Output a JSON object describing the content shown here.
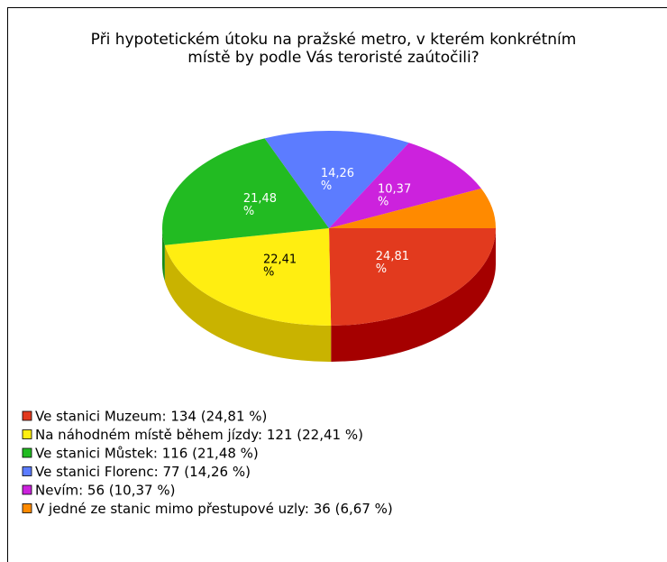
{
  "chart_data": {
    "type": "pie",
    "title": "Při hypotetickém útoku na pražské metro, v kterém konkrétním místě by podle Vás teroristé zaútočili?",
    "categories": [
      "Ve stanici Muzeum: 134 (24,81 %)",
      "Na náhodném místě během jízdy: 121 (22,41 %)",
      "Ve stanici Můstek: 116 (21,48 %)",
      "Ve stanici Florenc: 77 (14,26 %)",
      "Nevím: 56 (10,37 %)",
      "V jedné ze stanic mimo přestupové uzly: 36 (6,67 %)"
    ],
    "values": [
      24.81,
      22.41,
      21.48,
      14.26,
      10.37,
      6.67
    ],
    "value_labels": [
      "24,81 %",
      "22,41 %",
      "21,48 %",
      "14,26 %",
      "10,37 %",
      null
    ],
    "colors": [
      "#e23a1e",
      "#ffee11",
      "#22bb22",
      "#5c7cff",
      "#cc22dd",
      "#ff8a00"
    ],
    "side_colors": [
      "#a50000",
      "#c9b300",
      "#168a16",
      "#3a55c8",
      "#8a1699",
      "#c06000"
    ]
  }
}
